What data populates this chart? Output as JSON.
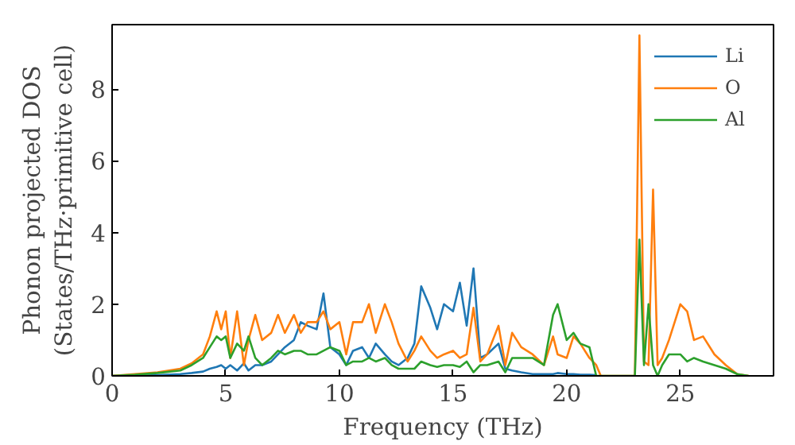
{
  "chart_data": {
    "type": "line",
    "xlabel": "Frequency (THz)",
    "ylabel": "Phonon projected DOS\n(States/THz·primitive cell)",
    "xlim": [
      0,
      29.1
    ],
    "ylim": [
      0,
      9.8
    ],
    "xticks": [
      0,
      5,
      10,
      15,
      20,
      25
    ],
    "yticks": [
      0,
      2,
      4,
      6,
      8
    ],
    "grid": false,
    "legend": "top right",
    "x": [
      0,
      1,
      2,
      3,
      3.5,
      4,
      4.3,
      4.6,
      4.8,
      5,
      5.2,
      5.5,
      5.8,
      6,
      6.3,
      6.6,
      7,
      7.3,
      7.6,
      8,
      8.3,
      8.6,
      9,
      9.3,
      9.6,
      10,
      10.3,
      10.6,
      11,
      11.3,
      11.6,
      12,
      12.3,
      12.6,
      13,
      13.3,
      13.6,
      14,
      14.3,
      14.6,
      15,
      15.3,
      15.6,
      15.9,
      16.2,
      16.5,
      17,
      17.3,
      17.6,
      18,
      18.5,
      19,
      19.4,
      19.6,
      20,
      20.3,
      20.6,
      21,
      21.3,
      21.5,
      22,
      23,
      23.2,
      23.4,
      23.6,
      23.8,
      24,
      24.2,
      24.5,
      25,
      25.3,
      25.6,
      26,
      26.5,
      27,
      27.5,
      28
    ],
    "series": [
      {
        "name": "Li",
        "color": "#1f77b4",
        "values": [
          0,
          0,
          0.02,
          0.05,
          0.08,
          0.12,
          0.2,
          0.25,
          0.3,
          0.2,
          0.3,
          0.15,
          0.35,
          0.15,
          0.3,
          0.3,
          0.4,
          0.6,
          0.8,
          1.0,
          1.5,
          1.4,
          1.3,
          2.3,
          0.8,
          0.6,
          0.3,
          0.7,
          0.8,
          0.5,
          0.9,
          0.6,
          0.4,
          0.3,
          0.5,
          0.9,
          2.5,
          1.9,
          1.3,
          2.0,
          1.8,
          2.6,
          1.4,
          3.0,
          0.5,
          0.6,
          0.9,
          0.2,
          0.15,
          0.1,
          0.05,
          0.05,
          0.05,
          0.08,
          0.05,
          0.05,
          0.03,
          0.03,
          0.02,
          null,
          null,
          null,
          null,
          null,
          null,
          null,
          null,
          null,
          null,
          null,
          null,
          null,
          null,
          null,
          null,
          null,
          null
        ]
      },
      {
        "name": "O",
        "color": "#ff7f0e",
        "values": [
          0,
          0.05,
          0.1,
          0.2,
          0.35,
          0.6,
          1.1,
          1.8,
          1.3,
          1.8,
          0.5,
          1.8,
          0.3,
          1.0,
          1.7,
          1.0,
          1.2,
          1.7,
          1.2,
          1.7,
          1.2,
          1.5,
          1.5,
          1.8,
          1.3,
          1.5,
          0.6,
          1.5,
          1.5,
          2.0,
          1.2,
          2.0,
          1.5,
          0.9,
          0.4,
          0.7,
          1.1,
          0.7,
          0.5,
          0.6,
          0.7,
          0.5,
          0.6,
          1.9,
          0.4,
          0.6,
          1.4,
          0.3,
          1.2,
          0.8,
          0.6,
          0.3,
          1.1,
          0.6,
          0.5,
          1.1,
          0.9,
          0.5,
          0.3,
          0,
          0,
          0,
          9.5,
          0.4,
          0.3,
          5.2,
          0.3,
          0.5,
          1.0,
          2.0,
          1.8,
          1.0,
          1.1,
          0.6,
          0.3,
          0.05,
          0
        ]
      },
      {
        "name": "Al",
        "color": "#2ca02c",
        "values": [
          0,
          0.03,
          0.08,
          0.15,
          0.3,
          0.5,
          0.8,
          1.1,
          1.0,
          1.1,
          0.5,
          0.9,
          0.7,
          1.1,
          0.5,
          0.3,
          0.5,
          0.7,
          0.6,
          0.7,
          0.7,
          0.6,
          0.6,
          0.7,
          0.8,
          0.7,
          0.3,
          0.4,
          0.4,
          0.5,
          0.4,
          0.5,
          0.3,
          0.2,
          0.2,
          0.2,
          0.4,
          0.3,
          0.25,
          0.3,
          0.3,
          0.25,
          0.4,
          0.1,
          0.3,
          0.3,
          0.4,
          0.1,
          0.5,
          0.5,
          0.5,
          0.3,
          1.7,
          2.0,
          1.0,
          1.2,
          0.9,
          0.8,
          0,
          0,
          0,
          0,
          3.8,
          0.3,
          2.0,
          0.3,
          0,
          0.3,
          0.6,
          0.6,
          0.4,
          0.5,
          0.4,
          0.3,
          0.2,
          0.05,
          0
        ]
      }
    ]
  }
}
